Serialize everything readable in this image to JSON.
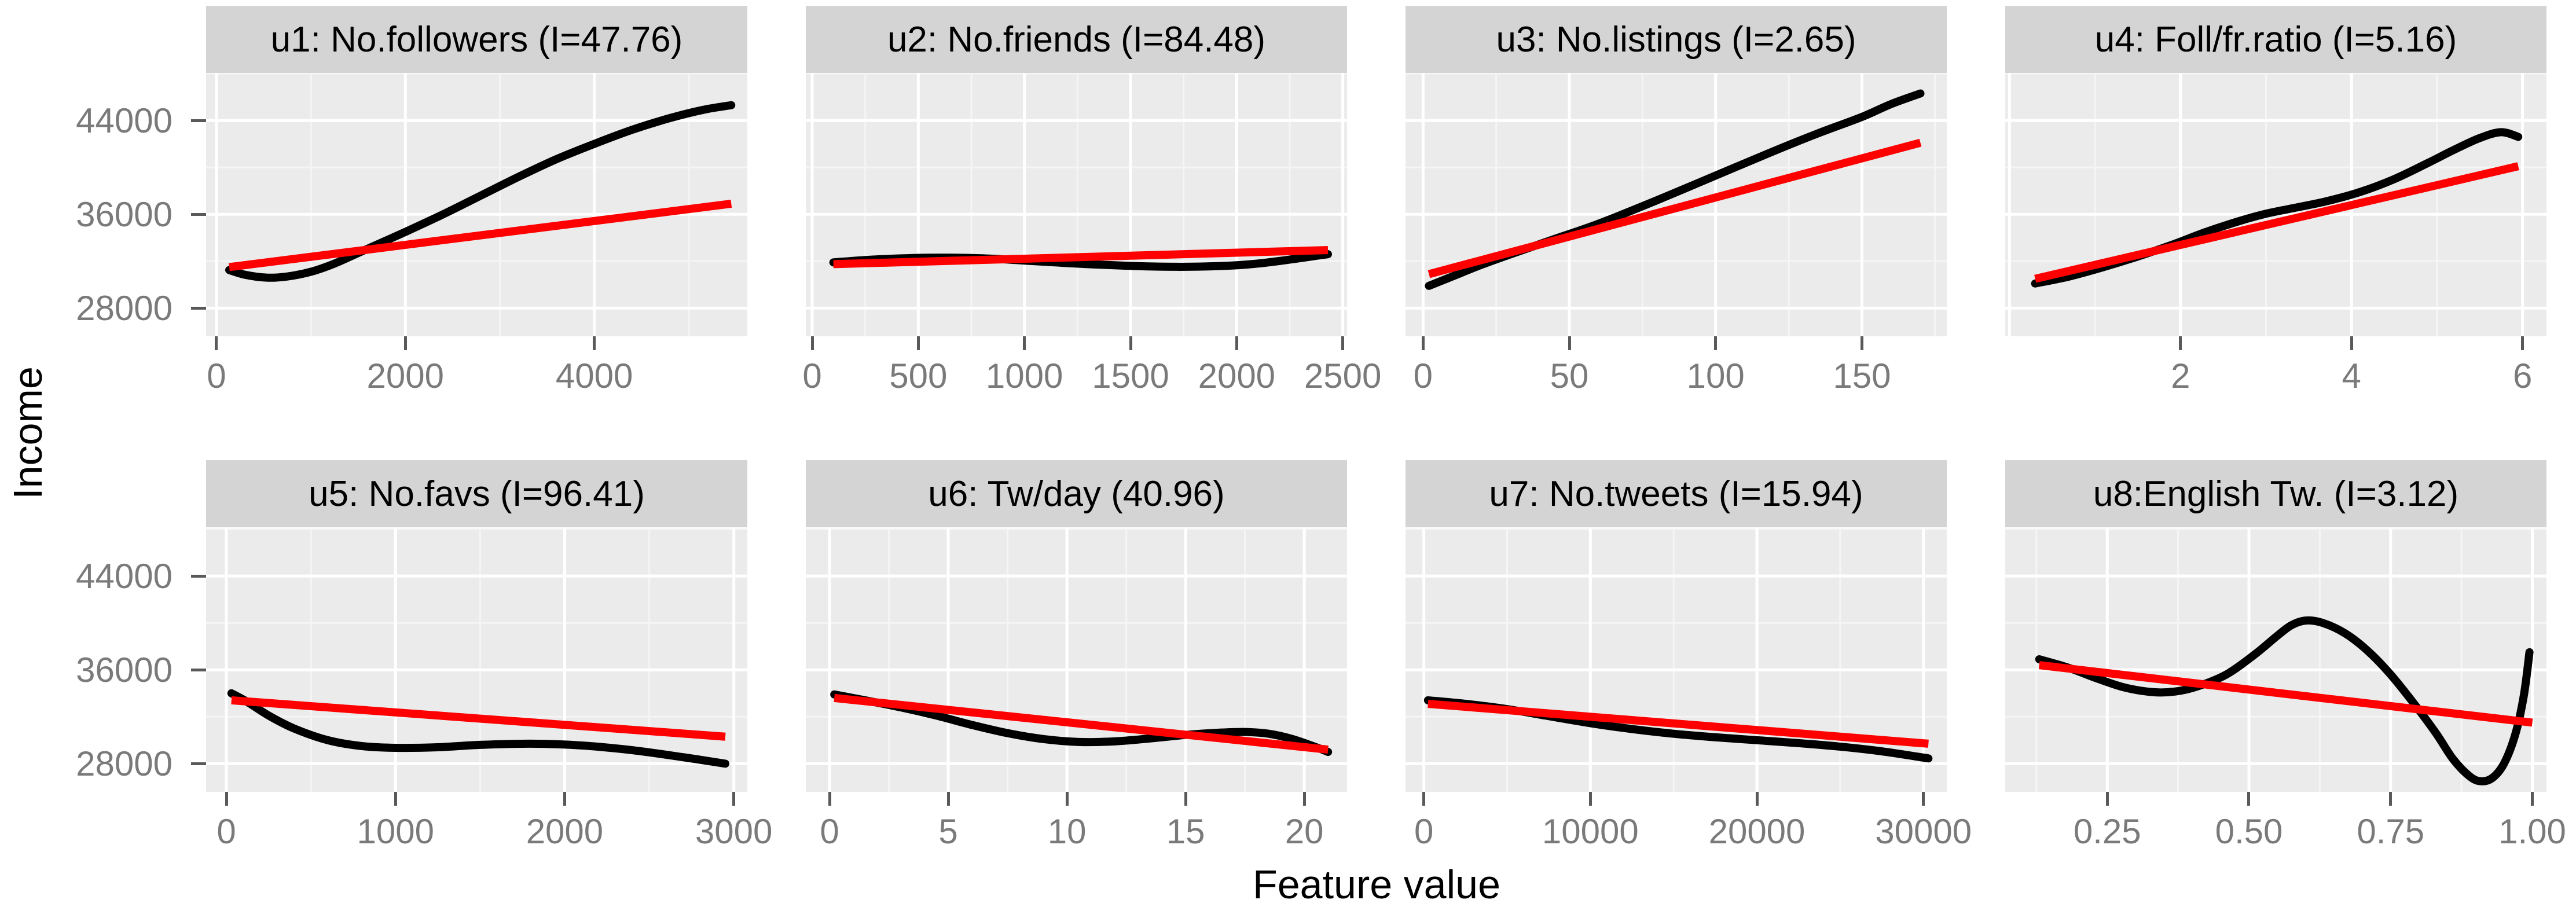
{
  "figure": {
    "ylabel": "Income",
    "xlabel": "Feature value",
    "colors": {
      "smooth_curve": "#000000",
      "fit_line": "#FF0000",
      "panel_bg": "#EBEBEB",
      "strip_bg": "#D4D4D4",
      "grid_major": "#FFFFFF",
      "grid_minor": "#F5F5F5",
      "tick_mark": "#595959",
      "tick_label": "#7A7A7A",
      "title_text": "#000000"
    },
    "yaxis": {
      "lim": [
        25600,
        48050
      ],
      "ticks": [
        {
          "v": 44000,
          "label": "44000"
        },
        {
          "v": 36000,
          "label": "36000"
        },
        {
          "v": 28000,
          "label": "28000"
        }
      ],
      "minor": [
        32000,
        40000,
        48000
      ]
    }
  },
  "chart_data": [
    {
      "type": "line",
      "title": "u1: No.followers (I=47.76)",
      "row": 0,
      "col": 0,
      "xlim": [
        -110,
        5620
      ],
      "xticks": [
        {
          "v": 0,
          "label": "0"
        },
        {
          "v": 2000,
          "label": "2000"
        },
        {
          "v": 4000,
          "label": "4000"
        }
      ],
      "xminor": [
        1000,
        3000,
        5000
      ],
      "series": [
        {
          "name": "gam-smooth",
          "color": "#000000",
          "points": [
            [
              135,
              31250
            ],
            [
              300,
              30850
            ],
            [
              530,
              30600
            ],
            [
              750,
              30700
            ],
            [
              1000,
              31100
            ],
            [
              1250,
              31800
            ],
            [
              1500,
              32700
            ],
            [
              1750,
              33600
            ],
            [
              2000,
              34500
            ],
            [
              2400,
              36000
            ],
            [
              2800,
              37600
            ],
            [
              3200,
              39200
            ],
            [
              3600,
              40700
            ],
            [
              4000,
              42000
            ],
            [
              4400,
              43200
            ],
            [
              4800,
              44200
            ],
            [
              5150,
              44900
            ],
            [
              5450,
              45300
            ]
          ]
        },
        {
          "name": "linear-fit",
          "color": "#FF0000",
          "points": [
            [
              135,
              31500
            ],
            [
              5450,
              36900
            ]
          ]
        }
      ]
    },
    {
      "type": "line",
      "title": "u2: No.friends (I=84.48)",
      "row": 0,
      "col": 1,
      "xlim": [
        -30,
        2520
      ],
      "xticks": [
        {
          "v": 0,
          "label": "0"
        },
        {
          "v": 500,
          "label": "500"
        },
        {
          "v": 1000,
          "label": "1000"
        },
        {
          "v": 1500,
          "label": "1500"
        },
        {
          "v": 2000,
          "label": "2000"
        },
        {
          "v": 2500,
          "label": "2500"
        }
      ],
      "xminor": [
        250,
        750,
        1250,
        1750,
        2250
      ],
      "series": [
        {
          "name": "gam-smooth",
          "color": "#000000",
          "points": [
            [
              100,
              31900
            ],
            [
              300,
              32150
            ],
            [
              550,
              32300
            ],
            [
              800,
              32250
            ],
            [
              1050,
              32000
            ],
            [
              1300,
              31750
            ],
            [
              1600,
              31550
            ],
            [
              1850,
              31550
            ],
            [
              2100,
              31800
            ],
            [
              2430,
              32600
            ]
          ]
        },
        {
          "name": "linear-fit",
          "color": "#FF0000",
          "points": [
            [
              100,
              31750
            ],
            [
              2430,
              32950
            ]
          ]
        }
      ]
    },
    {
      "type": "line",
      "title": "u3: No.listings (I=2.65)",
      "row": 0,
      "col": 2,
      "xlim": [
        -6,
        179
      ],
      "xticks": [
        {
          "v": 0,
          "label": "0"
        },
        {
          "v": 50,
          "label": "50"
        },
        {
          "v": 100,
          "label": "100"
        },
        {
          "v": 150,
          "label": "150"
        }
      ],
      "xminor": [
        25,
        75,
        125,
        175
      ],
      "series": [
        {
          "name": "gam-smooth",
          "color": "#000000",
          "points": [
            [
              2,
              29900
            ],
            [
              10,
              30700
            ],
            [
              20,
              31700
            ],
            [
              30,
              32600
            ],
            [
              45,
              33900
            ],
            [
              60,
              35200
            ],
            [
              80,
              37200
            ],
            [
              100,
              39300
            ],
            [
              120,
              41400
            ],
            [
              135,
              42900
            ],
            [
              150,
              44300
            ],
            [
              160,
              45400
            ],
            [
              170,
              46300
            ]
          ]
        },
        {
          "name": "linear-fit",
          "color": "#FF0000",
          "points": [
            [
              2,
              30900
            ],
            [
              170,
              42100
            ]
          ]
        }
      ]
    },
    {
      "type": "line",
      "title": "u4: Foll/fr.ratio (I=5.16)",
      "row": 0,
      "col": 3,
      "xlim": [
        -0.05,
        6.28
      ],
      "xticks": [
        {
          "v": 2,
          "label": "2"
        },
        {
          "v": 4,
          "label": "4"
        },
        {
          "v": 6,
          "label": "6"
        }
      ],
      "xminor": [
        1,
        3,
        5
      ],
      "xgrid_extra": [
        0
      ],
      "series": [
        {
          "name": "gam-smooth",
          "color": "#000000",
          "points": [
            [
              0.3,
              30100
            ],
            [
              0.7,
              30700
            ],
            [
              1.1,
              31500
            ],
            [
              1.5,
              32400
            ],
            [
              1.9,
              33400
            ],
            [
              2.3,
              34500
            ],
            [
              2.7,
              35450
            ],
            [
              3.0,
              36050
            ],
            [
              3.3,
              36500
            ],
            [
              3.7,
              37100
            ],
            [
              4.1,
              37900
            ],
            [
              4.5,
              39000
            ],
            [
              4.9,
              40400
            ],
            [
              5.2,
              41500
            ],
            [
              5.5,
              42500
            ],
            [
              5.75,
              43000
            ],
            [
              5.95,
              42600
            ]
          ]
        },
        {
          "name": "linear-fit",
          "color": "#FF0000",
          "points": [
            [
              0.3,
              30500
            ],
            [
              5.95,
              40100
            ]
          ]
        }
      ]
    },
    {
      "type": "line",
      "title": "u5: No.favs (I=96.41)",
      "row": 1,
      "col": 0,
      "xlim": [
        -120,
        3080
      ],
      "xticks": [
        {
          "v": 0,
          "label": "0"
        },
        {
          "v": 1000,
          "label": "1000"
        },
        {
          "v": 2000,
          "label": "2000"
        },
        {
          "v": 3000,
          "label": "3000"
        }
      ],
      "xminor": [
        500,
        1500,
        2500
      ],
      "series": [
        {
          "name": "gam-smooth",
          "color": "#000000",
          "points": [
            [
              30,
              34000
            ],
            [
              120,
              33300
            ],
            [
              250,
              32100
            ],
            [
              400,
              31000
            ],
            [
              600,
              30000
            ],
            [
              800,
              29500
            ],
            [
              1000,
              29350
            ],
            [
              1250,
              29400
            ],
            [
              1500,
              29600
            ],
            [
              1800,
              29700
            ],
            [
              2100,
              29550
            ],
            [
              2400,
              29150
            ],
            [
              2700,
              28550
            ],
            [
              2950,
              28000
            ]
          ]
        },
        {
          "name": "linear-fit",
          "color": "#FF0000",
          "points": [
            [
              30,
              33400
            ],
            [
              2950,
              30300
            ]
          ]
        }
      ]
    },
    {
      "type": "line",
      "title": "u6: Tw/day (40.96)",
      "row": 1,
      "col": 1,
      "xlim": [
        -1.0,
        21.8
      ],
      "xticks": [
        {
          "v": 0,
          "label": "0"
        },
        {
          "v": 5,
          "label": "5"
        },
        {
          "v": 10,
          "label": "10"
        },
        {
          "v": 15,
          "label": "15"
        },
        {
          "v": 20,
          "label": "20"
        }
      ],
      "xminor": [
        2.5,
        7.5,
        12.5,
        17.5
      ],
      "series": [
        {
          "name": "gam-smooth",
          "color": "#000000",
          "points": [
            [
              0.2,
              33900
            ],
            [
              1.5,
              33400
            ],
            [
              3,
              32800
            ],
            [
              4.5,
              32100
            ],
            [
              6,
              31300
            ],
            [
              7.5,
              30600
            ],
            [
              9,
              30100
            ],
            [
              10.5,
              29850
            ],
            [
              12,
              29900
            ],
            [
              13.5,
              30150
            ],
            [
              15,
              30450
            ],
            [
              16.5,
              30650
            ],
            [
              17.5,
              30700
            ],
            [
              18.5,
              30550
            ],
            [
              19.5,
              30100
            ],
            [
              20.5,
              29400
            ],
            [
              21,
              29000
            ]
          ]
        },
        {
          "name": "linear-fit",
          "color": "#FF0000",
          "points": [
            [
              0.2,
              33600
            ],
            [
              21,
              29200
            ]
          ]
        }
      ]
    },
    {
      "type": "line",
      "title": "u7: No.tweets (I=15.94)",
      "row": 1,
      "col": 2,
      "xlim": [
        -1100,
        31400
      ],
      "xticks": [
        {
          "v": 0,
          "label": "0"
        },
        {
          "v": 10000,
          "label": "10000"
        },
        {
          "v": 20000,
          "label": "20000"
        },
        {
          "v": 30000,
          "label": "30000"
        }
      ],
      "xminor": [
        5000,
        15000,
        25000
      ],
      "series": [
        {
          "name": "gam-smooth",
          "color": "#000000",
          "points": [
            [
              250,
              33400
            ],
            [
              2500,
              33100
            ],
            [
              5000,
              32650
            ],
            [
              7500,
              32050
            ],
            [
              10000,
              31450
            ],
            [
              12500,
              30950
            ],
            [
              15000,
              30550
            ],
            [
              17500,
              30250
            ],
            [
              20000,
              30000
            ],
            [
              22500,
              29750
            ],
            [
              25000,
              29450
            ],
            [
              27500,
              29050
            ],
            [
              30300,
              28450
            ]
          ]
        },
        {
          "name": "linear-fit",
          "color": "#FF0000",
          "points": [
            [
              250,
              33100
            ],
            [
              30300,
              29700
            ]
          ]
        }
      ]
    },
    {
      "type": "line",
      "title": "u8:English Tw. (I=3.12)",
      "row": 1,
      "col": 3,
      "xlim": [
        0.07,
        1.025
      ],
      "xticks": [
        {
          "v": 0.25,
          "label": "0.25"
        },
        {
          "v": 0.5,
          "label": "0.50"
        },
        {
          "v": 0.75,
          "label": "0.75"
        },
        {
          "v": 1.0,
          "label": "1.00"
        }
      ],
      "xminor": [
        0.125,
        0.375,
        0.625,
        0.875
      ],
      "series": [
        {
          "name": "gam-smooth",
          "color": "#000000",
          "points": [
            [
              0.13,
              36900
            ],
            [
              0.18,
              36200
            ],
            [
              0.23,
              35300
            ],
            [
              0.28,
              34500
            ],
            [
              0.33,
              34100
            ],
            [
              0.37,
              34150
            ],
            [
              0.41,
              34600
            ],
            [
              0.46,
              35600
            ],
            [
              0.51,
              37300
            ],
            [
              0.55,
              38900
            ],
            [
              0.575,
              39800
            ],
            [
              0.6,
              40200
            ],
            [
              0.63,
              40000
            ],
            [
              0.67,
              39100
            ],
            [
              0.71,
              37600
            ],
            [
              0.75,
              35600
            ],
            [
              0.79,
              33200
            ],
            [
              0.83,
              30600
            ],
            [
              0.86,
              28400
            ],
            [
              0.89,
              26900
            ],
            [
              0.91,
              26500
            ],
            [
              0.93,
              26800
            ],
            [
              0.95,
              28000
            ],
            [
              0.97,
              30500
            ],
            [
              0.985,
              33800
            ],
            [
              0.995,
              37500
            ]
          ]
        },
        {
          "name": "linear-fit",
          "color": "#FF0000",
          "points": [
            [
              0.13,
              36400
            ],
            [
              1.0,
              31500
            ]
          ]
        }
      ]
    }
  ]
}
